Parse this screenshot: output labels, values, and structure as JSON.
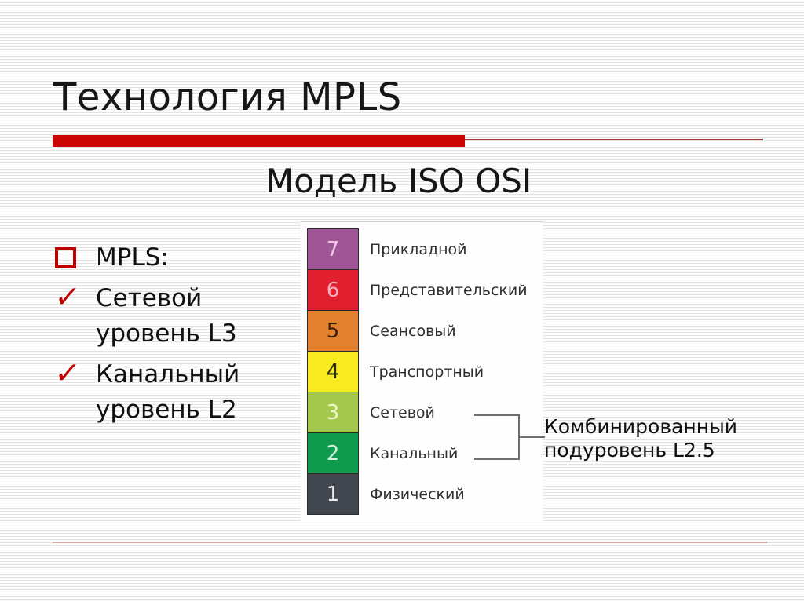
{
  "slide": {
    "title": "Технология MPLS",
    "subtitle": "Модель ISO OSI",
    "bullets": [
      {
        "marker": "square",
        "text": "MPLS:"
      },
      {
        "marker": "check",
        "text": "Сетевой уровень L3"
      },
      {
        "marker": "check",
        "text": "Канальный уровень L2"
      }
    ],
    "osi_diagram": {
      "layers": [
        {
          "num": "7",
          "name": "Прикладной",
          "color": "#9E5696",
          "num_color": "#EFC7E5"
        },
        {
          "num": "6",
          "name": "Представительский",
          "color": "#E11E2E",
          "num_color": "#F6AEBC"
        },
        {
          "num": "5",
          "name": "Сеансовый",
          "color": "#E28130",
          "num_color": "#38200A"
        },
        {
          "num": "4",
          "name": "Транспортный",
          "color": "#F8EC20",
          "num_color": "#2B2B10"
        },
        {
          "num": "3",
          "name": "Сетевой",
          "color": "#A4C84E",
          "num_color": "#F0F6CC"
        },
        {
          "num": "2",
          "name": "Канальный",
          "color": "#0E9B4D",
          "num_color": "#D2EFDC"
        },
        {
          "num": "1",
          "name": "Физический",
          "color": "#41464F",
          "num_color": "#ECECEE"
        }
      ]
    },
    "callout": {
      "line1": "Комбинированный",
      "line2": "подуровень L2.5"
    },
    "colors": {
      "accent_red": "#CB0404",
      "thin_rule_red": "#A03E3E",
      "bullet_red": "#C00000",
      "divider_pink": "#D3A3A3",
      "bracket_gray": "#6E6E6E",
      "text_black": "#161616",
      "label_gray": "#2F2F2F"
    }
  }
}
